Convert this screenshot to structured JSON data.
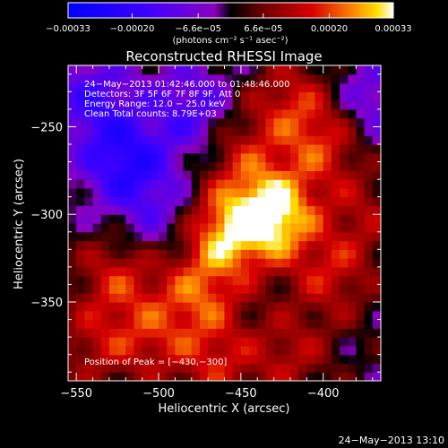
{
  "chart_data": {
    "type": "heatmap",
    "title": "Reconstructed RHESSI Image",
    "xlabel": "Heliocentric X (arcsec)",
    "ylabel": "Heliocentric Y (arcsec)",
    "xlim": [
      -555,
      -365
    ],
    "ylim": [
      -395,
      -215
    ],
    "x_ticks": [
      -550,
      -500,
      -450,
      -400
    ],
    "y_ticks": [
      -250,
      -300,
      -350
    ],
    "colorbar": {
      "range": [
        -0.00033,
        0.00033
      ],
      "tick_values": [
        -0.00033,
        -0.0002,
        -6.6e-05,
        6.6e-05,
        0.0002,
        0.00033
      ],
      "tick_labels": [
        "−0.00033",
        "−0.00020",
        "−6.6e−05",
        "6.6e−05",
        "0.00020",
        "0.00033"
      ],
      "unit_label": "(photons cm⁻² s⁻¹ asec⁻²)"
    },
    "annotations": [
      "24−May−2013 01:42:46.000 to 01:48:46.000",
      "Detectors: 3F 5F 6F 7F 8F 9F, Att 0",
      "Energy Range: 12.0 − 25.0 keV",
      "Clean    Total counts: 8.79E+03"
    ],
    "peak_label": "Position of Peak = [−430,−300]",
    "peak": [
      -430,
      -300
    ],
    "intensity_peaks": [
      {
        "x": -430,
        "y": -300,
        "value": 0.00033
      },
      {
        "x": -460,
        "y": -310,
        "value": 0.00024
      },
      {
        "x": -475,
        "y": -345,
        "value": 0.00018
      },
      {
        "x": -400,
        "y": -260,
        "value": 0.00016
      },
      {
        "x": -420,
        "y": -235,
        "value": 0.00014
      },
      {
        "x": -395,
        "y": -335,
        "value": 0.00014
      },
      {
        "x": -525,
        "y": -335,
        "value": 0.00015
      },
      {
        "x": -505,
        "y": -370,
        "value": 0.00013
      },
      {
        "x": -465,
        "y": -385,
        "value": 0.00014
      },
      {
        "x": -420,
        "y": -380,
        "value": 0.00012
      },
      {
        "x": -540,
        "y": -375,
        "value": 0.00011
      },
      {
        "x": -375,
        "y": -300,
        "value": 0.0001
      },
      {
        "x": -450,
        "y": -265,
        "value": 0.00012
      }
    ],
    "negative_regions": [
      {
        "x": -520,
        "y": -270,
        "value": -0.00022
      },
      {
        "x": -480,
        "y": -240,
        "value": -0.00015
      },
      {
        "x": -540,
        "y": -235,
        "value": -0.00016
      },
      {
        "x": -500,
        "y": -300,
        "value": -0.0001
      },
      {
        "x": -370,
        "y": -235,
        "value": -0.00012
      }
    ]
  },
  "footer_timestamp": "24−May−2013 13:10"
}
